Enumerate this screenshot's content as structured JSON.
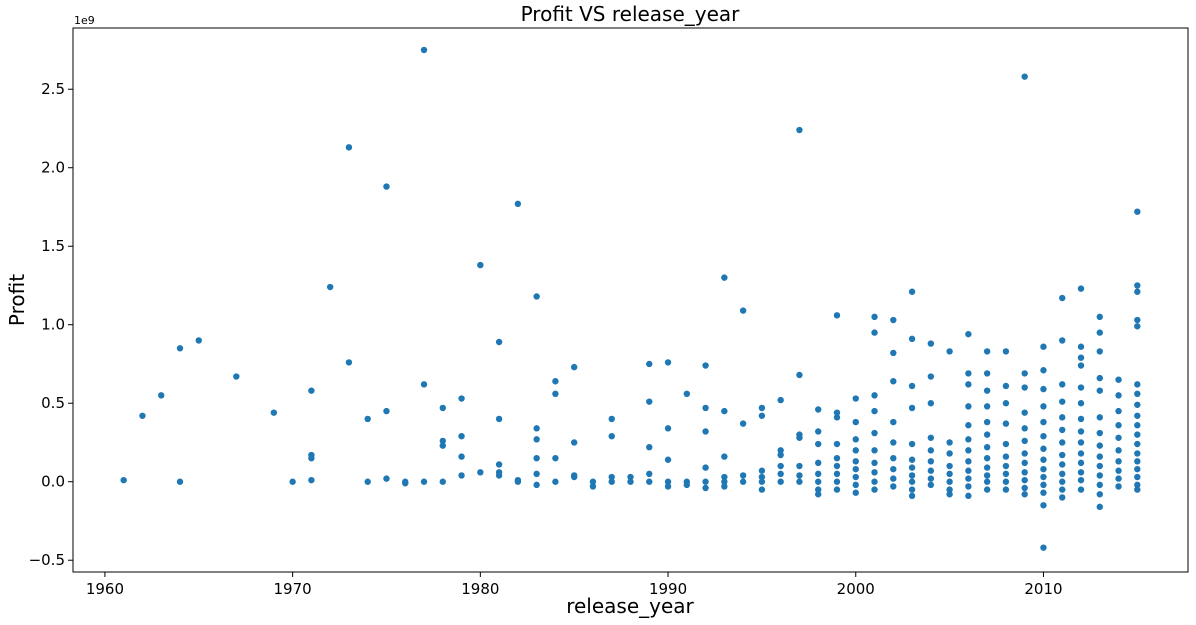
{
  "chart_data": {
    "type": "scatter",
    "title": "Profit VS release_year",
    "xlabel": "release_year",
    "ylabel": "Profit",
    "y_offset_label": "1e9",
    "xlim": [
      1958.3,
      2017.7
    ],
    "ylim": [
      -0.575,
      2.89
    ],
    "y_scale_exponent": 9,
    "xticks": [
      1960,
      1970,
      1980,
      1990,
      2000,
      2010
    ],
    "xtick_labels": [
      "1960",
      "1970",
      "1980",
      "1990",
      "2000",
      "2010"
    ],
    "yticks": [
      -0.5,
      0.0,
      0.5,
      1.0,
      1.5,
      2.0,
      2.5
    ],
    "ytick_labels": [
      "−0.5",
      "0.0",
      "0.5",
      "1.0",
      "1.5",
      "2.0",
      "2.5"
    ],
    "grid": false,
    "marker_color": "#1f77b4",
    "points": [
      [
        1961,
        0.01
      ],
      [
        1962,
        0.42
      ],
      [
        1963,
        0.55
      ],
      [
        1964,
        0.85
      ],
      [
        1964,
        0.0
      ],
      [
        1965,
        0.9
      ],
      [
        1967,
        0.67
      ],
      [
        1969,
        0.44
      ],
      [
        1970,
        0.0
      ],
      [
        1971,
        0.58
      ],
      [
        1971,
        0.17
      ],
      [
        1971,
        0.15
      ],
      [
        1971,
        0.01
      ],
      [
        1972,
        1.24
      ],
      [
        1973,
        2.13
      ],
      [
        1973,
        0.76
      ],
      [
        1974,
        0.4
      ],
      [
        1974,
        0.0
      ],
      [
        1975,
        1.88
      ],
      [
        1975,
        0.45
      ],
      [
        1975,
        0.02
      ],
      [
        1976,
        0.0
      ],
      [
        1976,
        -0.01
      ],
      [
        1977,
        2.75
      ],
      [
        1977,
        0.62
      ],
      [
        1977,
        0.0
      ],
      [
        1978,
        0.47
      ],
      [
        1978,
        0.26
      ],
      [
        1978,
        0.23
      ],
      [
        1978,
        0.0
      ],
      [
        1979,
        0.53
      ],
      [
        1979,
        0.29
      ],
      [
        1979,
        0.16
      ],
      [
        1979,
        0.04
      ],
      [
        1980,
        1.38
      ],
      [
        1980,
        0.06
      ],
      [
        1981,
        0.89
      ],
      [
        1981,
        0.4
      ],
      [
        1981,
        0.11
      ],
      [
        1981,
        0.06
      ],
      [
        1981,
        0.04
      ],
      [
        1982,
        1.77
      ],
      [
        1982,
        0.01
      ],
      [
        1982,
        0.0
      ],
      [
        1983,
        1.18
      ],
      [
        1983,
        0.34
      ],
      [
        1983,
        0.27
      ],
      [
        1983,
        0.15
      ],
      [
        1983,
        0.05
      ],
      [
        1983,
        -0.02
      ],
      [
        1984,
        0.64
      ],
      [
        1984,
        0.56
      ],
      [
        1984,
        0.15
      ],
      [
        1984,
        0.0
      ],
      [
        1985,
        0.73
      ],
      [
        1985,
        0.25
      ],
      [
        1985,
        0.04
      ],
      [
        1985,
        0.03
      ],
      [
        1986,
        0.0
      ],
      [
        1986,
        -0.03
      ],
      [
        1987,
        0.4
      ],
      [
        1987,
        0.29
      ],
      [
        1987,
        0.03
      ],
      [
        1987,
        0.0
      ],
      [
        1988,
        0.03
      ],
      [
        1988,
        0.0
      ],
      [
        1989,
        0.75
      ],
      [
        1989,
        0.51
      ],
      [
        1989,
        0.22
      ],
      [
        1989,
        0.05
      ],
      [
        1989,
        0.0
      ],
      [
        1990,
        0.76
      ],
      [
        1990,
        0.34
      ],
      [
        1990,
        0.14
      ],
      [
        1990,
        0.0
      ],
      [
        1990,
        -0.03
      ],
      [
        1991,
        0.56
      ],
      [
        1991,
        0.0
      ],
      [
        1991,
        -0.02
      ],
      [
        1992,
        0.74
      ],
      [
        1992,
        0.47
      ],
      [
        1992,
        0.32
      ],
      [
        1992,
        0.09
      ],
      [
        1992,
        0.0
      ],
      [
        1992,
        -0.04
      ],
      [
        1993,
        1.3
      ],
      [
        1993,
        0.45
      ],
      [
        1993,
        0.16
      ],
      [
        1993,
        0.03
      ],
      [
        1993,
        0.0
      ],
      [
        1993,
        -0.03
      ],
      [
        1994,
        1.09
      ],
      [
        1994,
        0.37
      ],
      [
        1994,
        0.04
      ],
      [
        1994,
        0.0
      ],
      [
        1995,
        0.47
      ],
      [
        1995,
        0.42
      ],
      [
        1995,
        0.07
      ],
      [
        1995,
        0.03
      ],
      [
        1995,
        0.0
      ],
      [
        1995,
        -0.05
      ],
      [
        1996,
        0.52
      ],
      [
        1996,
        0.2
      ],
      [
        1996,
        0.17
      ],
      [
        1996,
        0.1
      ],
      [
        1996,
        0.05
      ],
      [
        1996,
        0.0
      ],
      [
        1997,
        2.24
      ],
      [
        1997,
        0.68
      ],
      [
        1997,
        0.3
      ],
      [
        1997,
        0.28
      ],
      [
        1997,
        0.1
      ],
      [
        1997,
        0.04
      ],
      [
        1997,
        0.0
      ],
      [
        1998,
        0.46
      ],
      [
        1998,
        0.32
      ],
      [
        1998,
        0.24
      ],
      [
        1998,
        0.12
      ],
      [
        1998,
        0.05
      ],
      [
        1998,
        0.0
      ],
      [
        1998,
        -0.05
      ],
      [
        1998,
        -0.08
      ],
      [
        1999,
        1.06
      ],
      [
        1999,
        0.44
      ],
      [
        1999,
        0.41
      ],
      [
        1999,
        0.24
      ],
      [
        1999,
        0.15
      ],
      [
        1999,
        0.1
      ],
      [
        1999,
        0.05
      ],
      [
        1999,
        0.0
      ],
      [
        1999,
        -0.05
      ],
      [
        2000,
        0.53
      ],
      [
        2000,
        0.38
      ],
      [
        2000,
        0.27
      ],
      [
        2000,
        0.2
      ],
      [
        2000,
        0.13
      ],
      [
        2000,
        0.08
      ],
      [
        2000,
        0.03
      ],
      [
        2000,
        -0.02
      ],
      [
        2000,
        -0.07
      ],
      [
        2001,
        1.05
      ],
      [
        2001,
        0.95
      ],
      [
        2001,
        0.55
      ],
      [
        2001,
        0.45
      ],
      [
        2001,
        0.31
      ],
      [
        2001,
        0.2
      ],
      [
        2001,
        0.12
      ],
      [
        2001,
        0.06
      ],
      [
        2001,
        0.0
      ],
      [
        2001,
        -0.05
      ],
      [
        2002,
        1.03
      ],
      [
        2002,
        0.82
      ],
      [
        2002,
        0.64
      ],
      [
        2002,
        0.38
      ],
      [
        2002,
        0.25
      ],
      [
        2002,
        0.15
      ],
      [
        2002,
        0.08
      ],
      [
        2002,
        0.02
      ],
      [
        2002,
        -0.03
      ],
      [
        2003,
        1.21
      ],
      [
        2003,
        0.91
      ],
      [
        2003,
        0.61
      ],
      [
        2003,
        0.47
      ],
      [
        2003,
        0.24
      ],
      [
        2003,
        0.14
      ],
      [
        2003,
        0.09
      ],
      [
        2003,
        0.04
      ],
      [
        2003,
        0.0
      ],
      [
        2003,
        -0.05
      ],
      [
        2003,
        -0.09
      ],
      [
        2004,
        0.88
      ],
      [
        2004,
        0.67
      ],
      [
        2004,
        0.5
      ],
      [
        2004,
        0.28
      ],
      [
        2004,
        0.2
      ],
      [
        2004,
        0.13
      ],
      [
        2004,
        0.07
      ],
      [
        2004,
        0.02
      ],
      [
        2004,
        -0.02
      ],
      [
        2005,
        0.83
      ],
      [
        2005,
        0.25
      ],
      [
        2005,
        0.18
      ],
      [
        2005,
        0.1
      ],
      [
        2005,
        0.05
      ],
      [
        2005,
        0.0
      ],
      [
        2005,
        -0.05
      ],
      [
        2005,
        -0.08
      ],
      [
        2006,
        0.94
      ],
      [
        2006,
        0.69
      ],
      [
        2006,
        0.62
      ],
      [
        2006,
        0.48
      ],
      [
        2006,
        0.36
      ],
      [
        2006,
        0.27
      ],
      [
        2006,
        0.2
      ],
      [
        2006,
        0.13
      ],
      [
        2006,
        0.07
      ],
      [
        2006,
        0.02
      ],
      [
        2006,
        -0.03
      ],
      [
        2006,
        -0.09
      ],
      [
        2007,
        0.83
      ],
      [
        2007,
        0.69
      ],
      [
        2007,
        0.58
      ],
      [
        2007,
        0.48
      ],
      [
        2007,
        0.38
      ],
      [
        2007,
        0.3
      ],
      [
        2007,
        0.22
      ],
      [
        2007,
        0.15
      ],
      [
        2007,
        0.09
      ],
      [
        2007,
        0.04
      ],
      [
        2007,
        0.0
      ],
      [
        2007,
        -0.05
      ],
      [
        2008,
        0.83
      ],
      [
        2008,
        0.61
      ],
      [
        2008,
        0.5
      ],
      [
        2008,
        0.37
      ],
      [
        2008,
        0.24
      ],
      [
        2008,
        0.16
      ],
      [
        2008,
        0.1
      ],
      [
        2008,
        0.05
      ],
      [
        2008,
        0.0
      ],
      [
        2008,
        -0.05
      ],
      [
        2009,
        2.58
      ],
      [
        2009,
        0.69
      ],
      [
        2009,
        0.6
      ],
      [
        2009,
        0.44
      ],
      [
        2009,
        0.34
      ],
      [
        2009,
        0.26
      ],
      [
        2009,
        0.18
      ],
      [
        2009,
        0.12
      ],
      [
        2009,
        0.06
      ],
      [
        2009,
        0.01
      ],
      [
        2009,
        -0.04
      ],
      [
        2009,
        -0.08
      ],
      [
        2010,
        0.86
      ],
      [
        2010,
        0.71
      ],
      [
        2010,
        0.59
      ],
      [
        2010,
        0.48
      ],
      [
        2010,
        0.38
      ],
      [
        2010,
        0.29
      ],
      [
        2010,
        0.21
      ],
      [
        2010,
        0.14
      ],
      [
        2010,
        0.08
      ],
      [
        2010,
        0.03
      ],
      [
        2010,
        -0.02
      ],
      [
        2010,
        -0.07
      ],
      [
        2010,
        -0.15
      ],
      [
        2010,
        -0.42
      ],
      [
        2011,
        1.17
      ],
      [
        2011,
        0.9
      ],
      [
        2011,
        0.62
      ],
      [
        2011,
        0.51
      ],
      [
        2011,
        0.41
      ],
      [
        2011,
        0.33
      ],
      [
        2011,
        0.25
      ],
      [
        2011,
        0.17
      ],
      [
        2011,
        0.11
      ],
      [
        2011,
        0.05
      ],
      [
        2011,
        0.0
      ],
      [
        2011,
        -0.05
      ],
      [
        2011,
        -0.1
      ],
      [
        2012,
        1.23
      ],
      [
        2012,
        0.86
      ],
      [
        2012,
        0.79
      ],
      [
        2012,
        0.74
      ],
      [
        2012,
        0.6
      ],
      [
        2012,
        0.5
      ],
      [
        2012,
        0.4
      ],
      [
        2012,
        0.32
      ],
      [
        2012,
        0.25
      ],
      [
        2012,
        0.18
      ],
      [
        2012,
        0.12
      ],
      [
        2012,
        0.06
      ],
      [
        2012,
        0.01
      ],
      [
        2012,
        -0.05
      ],
      [
        2013,
        1.05
      ],
      [
        2013,
        0.95
      ],
      [
        2013,
        0.83
      ],
      [
        2013,
        0.66
      ],
      [
        2013,
        0.58
      ],
      [
        2013,
        0.41
      ],
      [
        2013,
        0.31
      ],
      [
        2013,
        0.23
      ],
      [
        2013,
        0.16
      ],
      [
        2013,
        0.1
      ],
      [
        2013,
        0.04
      ],
      [
        2013,
        -0.02
      ],
      [
        2013,
        -0.08
      ],
      [
        2013,
        -0.16
      ],
      [
        2014,
        0.65
      ],
      [
        2014,
        0.55
      ],
      [
        2014,
        0.45
      ],
      [
        2014,
        0.36
      ],
      [
        2014,
        0.28
      ],
      [
        2014,
        0.2
      ],
      [
        2014,
        0.13
      ],
      [
        2014,
        0.07
      ],
      [
        2014,
        0.02
      ],
      [
        2014,
        -0.03
      ],
      [
        2015,
        1.72
      ],
      [
        2015,
        1.25
      ],
      [
        2015,
        1.21
      ],
      [
        2015,
        1.03
      ],
      [
        2015,
        0.99
      ],
      [
        2015,
        0.62
      ],
      [
        2015,
        0.56
      ],
      [
        2015,
        0.49
      ],
      [
        2015,
        0.42
      ],
      [
        2015,
        0.36
      ],
      [
        2015,
        0.3
      ],
      [
        2015,
        0.24
      ],
      [
        2015,
        0.18
      ],
      [
        2015,
        0.13
      ],
      [
        2015,
        0.08
      ],
      [
        2015,
        0.03
      ],
      [
        2015,
        -0.02
      ],
      [
        2015,
        -0.05
      ]
    ]
  }
}
